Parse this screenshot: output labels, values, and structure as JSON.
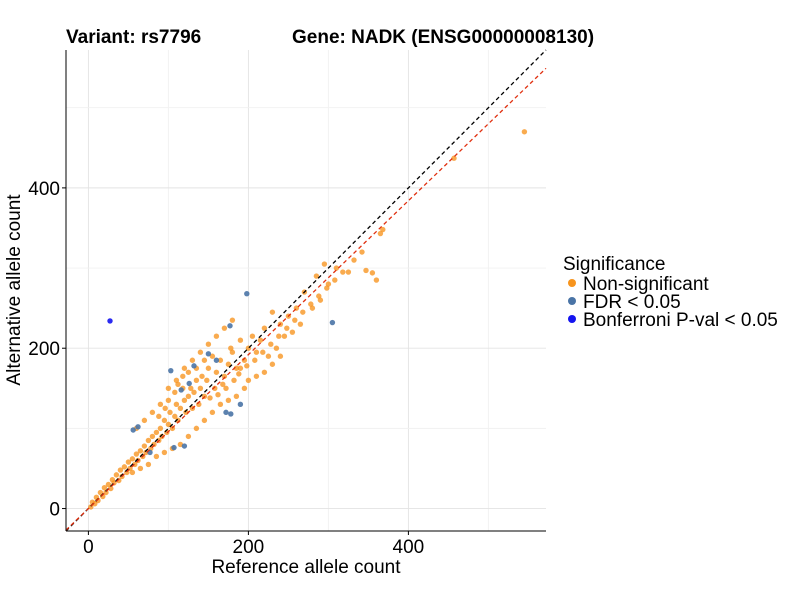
{
  "chart_data": {
    "type": "scatter",
    "title_left": "Variant: rs7796",
    "title_right": "Gene: NADK (ENSG00000008130)",
    "xlabel": "Reference allele count",
    "ylabel": "Alternative allele count",
    "xlim": [
      -28,
      572
    ],
    "ylim": [
      -28,
      572
    ],
    "xticks": [
      0,
      200,
      400
    ],
    "yticks": [
      0,
      200,
      400
    ],
    "grid": true,
    "legend": {
      "title": "Significance",
      "position": "right",
      "items": [
        {
          "label": "Non-significant",
          "color": "#F7941D"
        },
        {
          "label": "FDR < 0.05",
          "color": "#4A74A6"
        },
        {
          "label": "Bonferroni P-val < 0.05",
          "color": "#1414F0"
        }
      ]
    },
    "reference_lines": [
      {
        "name": "identity",
        "color": "#000000",
        "slope": 1.0,
        "intercept": 0
      },
      {
        "name": "fit",
        "color": "#E03010",
        "slope": 0.96,
        "intercept": 0
      }
    ],
    "series": [
      {
        "group": "Non-significant",
        "color": "#F7941D",
        "points": [
          [
            545,
            470
          ],
          [
            457,
            437
          ],
          [
            368,
            348
          ],
          [
            365,
            343
          ],
          [
            355,
            294
          ],
          [
            347,
            297
          ],
          [
            360,
            285
          ],
          [
            325,
            295
          ],
          [
            310,
            300
          ],
          [
            295,
            305
          ],
          [
            300,
            280
          ],
          [
            285,
            290
          ],
          [
            290,
            260
          ],
          [
            270,
            270
          ],
          [
            280,
            250
          ],
          [
            260,
            250
          ],
          [
            250,
            240
          ],
          [
            265,
            230
          ],
          [
            240,
            230
          ],
          [
            245,
            215
          ],
          [
            235,
            200
          ],
          [
            255,
            220
          ],
          [
            230,
            245
          ],
          [
            220,
            225
          ],
          [
            215,
            210
          ],
          [
            210,
            195
          ],
          [
            225,
            190
          ],
          [
            205,
            215
          ],
          [
            200,
            200
          ],
          [
            195,
            185
          ],
          [
            190,
            210
          ],
          [
            185,
            175
          ],
          [
            180,
            195
          ],
          [
            175,
            180
          ],
          [
            170,
            165
          ],
          [
            178,
            200
          ],
          [
            172,
            150
          ],
          [
            165,
            185
          ],
          [
            160,
            170
          ],
          [
            158,
            150
          ],
          [
            155,
            190
          ],
          [
            150,
            175
          ],
          [
            148,
            160
          ],
          [
            145,
            140
          ],
          [
            142,
            165
          ],
          [
            140,
            150
          ],
          [
            138,
            130
          ],
          [
            135,
            160
          ],
          [
            132,
            145
          ],
          [
            130,
            125
          ],
          [
            128,
            150
          ],
          [
            125,
            140
          ],
          [
            122,
            120
          ],
          [
            120,
            135
          ],
          [
            118,
            150
          ],
          [
            115,
            125
          ],
          [
            112,
            110
          ],
          [
            110,
            130
          ],
          [
            108,
            115
          ],
          [
            105,
            100
          ],
          [
            102,
            120
          ],
          [
            100,
            105
          ],
          [
            98,
            95
          ],
          [
            95,
            110
          ],
          [
            92,
            90
          ],
          [
            90,
            100
          ],
          [
            88,
            85
          ],
          [
            85,
            95
          ],
          [
            82,
            80
          ],
          [
            80,
            90
          ],
          [
            78,
            75
          ],
          [
            75,
            85
          ],
          [
            72,
            70
          ],
          [
            70,
            78
          ],
          [
            68,
            65
          ],
          [
            65,
            72
          ],
          [
            62,
            60
          ],
          [
            60,
            68
          ],
          [
            58,
            55
          ],
          [
            55,
            62
          ],
          [
            52,
            50
          ],
          [
            50,
            58
          ],
          [
            48,
            45
          ],
          [
            45,
            52
          ],
          [
            42,
            40
          ],
          [
            40,
            48
          ],
          [
            38,
            35
          ],
          [
            35,
            42
          ],
          [
            32,
            32
          ],
          [
            30,
            36
          ],
          [
            28,
            25
          ],
          [
            25,
            30
          ],
          [
            22,
            20
          ],
          [
            20,
            26
          ],
          [
            18,
            15
          ],
          [
            15,
            20
          ],
          [
            12,
            10
          ],
          [
            10,
            14
          ],
          [
            8,
            6
          ],
          [
            5,
            8
          ],
          [
            3,
            2
          ],
          [
            60,
            100
          ],
          [
            70,
            110
          ],
          [
            80,
            120
          ],
          [
            90,
            130
          ],
          [
            100,
            150
          ],
          [
            110,
            160
          ],
          [
            120,
            175
          ],
          [
            130,
            185
          ],
          [
            140,
            195
          ],
          [
            150,
            205
          ],
          [
            160,
            215
          ],
          [
            170,
            225
          ],
          [
            180,
            235
          ],
          [
            190,
            175
          ],
          [
            200,
            160
          ],
          [
            210,
            165
          ],
          [
            220,
            170
          ],
          [
            230,
            180
          ],
          [
            240,
            190
          ],
          [
            165,
            130
          ],
          [
            175,
            135
          ],
          [
            185,
            140
          ],
          [
            195,
            150
          ],
          [
            155,
            120
          ],
          [
            145,
            110
          ],
          [
            135,
            100
          ],
          [
            125,
            90
          ],
          [
            115,
            80
          ],
          [
            105,
            75
          ],
          [
            95,
            70
          ],
          [
            85,
            65
          ],
          [
            75,
            55
          ],
          [
            65,
            50
          ],
          [
            55,
            45
          ],
          [
            125,
            170
          ],
          [
            135,
            175
          ],
          [
            145,
            185
          ],
          [
            118,
            165
          ],
          [
            112,
            155
          ],
          [
            108,
            145
          ],
          [
            100,
            135
          ],
          [
            96,
            125
          ],
          [
            88,
            115
          ],
          [
            152,
            138
          ],
          [
            162,
            142
          ],
          [
            168,
            155
          ],
          [
            182,
            160
          ],
          [
            188,
            168
          ],
          [
            198,
            178
          ],
          [
            208,
            185
          ],
          [
            218,
            195
          ],
          [
            228,
            205
          ],
          [
            238,
            215
          ],
          [
            248,
            225
          ],
          [
            258,
            235
          ],
          [
            268,
            245
          ],
          [
            278,
            255
          ],
          [
            288,
            265
          ],
          [
            298,
            275
          ],
          [
            308,
            285
          ],
          [
            318,
            295
          ],
          [
            332,
            310
          ],
          [
            342,
            320
          ]
        ]
      },
      {
        "group": "FDR < 0.05",
        "color": "#4A74A6",
        "points": [
          [
            198,
            268
          ],
          [
            305,
            232
          ],
          [
            177,
            228
          ],
          [
            150,
            193
          ],
          [
            160,
            185
          ],
          [
            132,
            178
          ],
          [
            103,
            172
          ],
          [
            126,
            156
          ],
          [
            116,
            148
          ],
          [
            190,
            130
          ],
          [
            178,
            118
          ],
          [
            172,
            120
          ],
          [
            56,
            98
          ],
          [
            62,
            102
          ],
          [
            107,
            76
          ],
          [
            120,
            78
          ],
          [
            77,
            70
          ]
        ]
      },
      {
        "group": "Bonferroni P-val < 0.05",
        "color": "#1414F0",
        "points": [
          [
            27,
            234
          ]
        ]
      }
    ]
  }
}
